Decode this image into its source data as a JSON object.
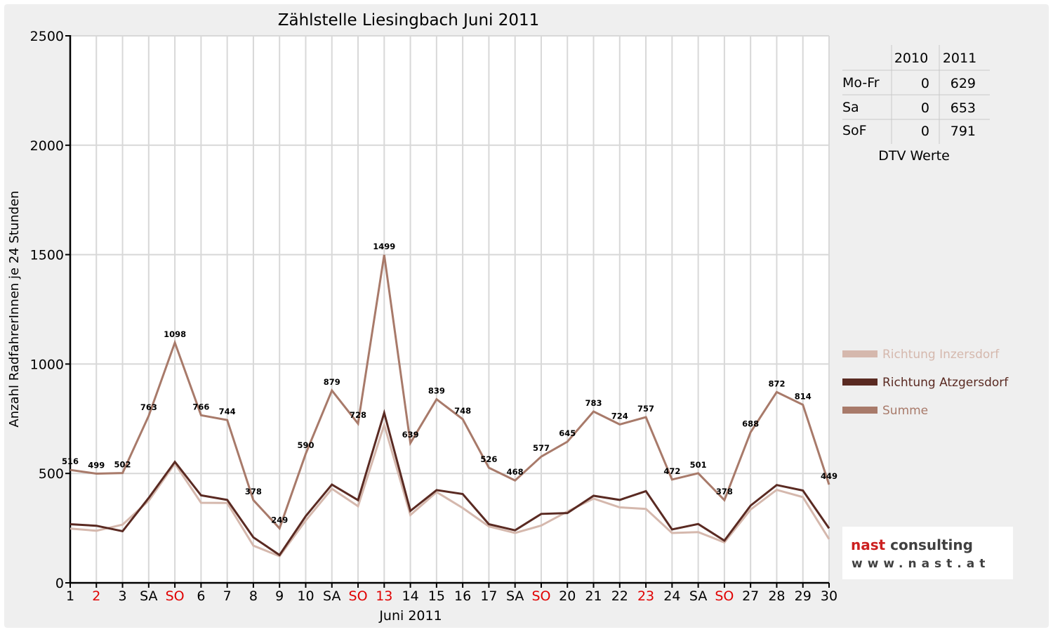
{
  "chart_data": {
    "type": "line",
    "title": "Zählstelle Liesingbach Juni 2011",
    "xlabel": "Juni 2011",
    "ylabel": "Anzahl RadfahrerInnen je 24 Stunden",
    "ylim": [
      0,
      2500
    ],
    "yticks": [
      0,
      500,
      1000,
      1500,
      2000,
      2500
    ],
    "grid": true,
    "legend_position": "right",
    "categories": [
      "1",
      "2",
      "3",
      "SA",
      "SO",
      "6",
      "7",
      "8",
      "9",
      "10",
      "SA",
      "SO",
      "13",
      "14",
      "15",
      "16",
      "17",
      "SA",
      "SO",
      "20",
      "21",
      "22",
      "23",
      "24",
      "SA",
      "SO",
      "27",
      "28",
      "29",
      "30"
    ],
    "red_categories": [
      1,
      4,
      11,
      12,
      18,
      22,
      25
    ],
    "series": [
      {
        "name": "Richtung Inzersdorf",
        "color": "#d5b8ad",
        "values": [
          248,
          238,
          266,
          375,
          545,
          366,
          365,
          170,
          122,
          285,
          430,
          350,
          722,
          310,
          415,
          342,
          258,
          228,
          262,
          326,
          385,
          345,
          338,
          228,
          232,
          185,
          335,
          425,
          392,
          200
        ]
      },
      {
        "name": "Richtung Atzgersdorf",
        "color": "#5a2a22",
        "values": [
          268,
          261,
          236,
          388,
          553,
          400,
          379,
          208,
          127,
          305,
          449,
          378,
          777,
          329,
          424,
          406,
          268,
          240,
          315,
          319,
          398,
          379,
          419,
          244,
          269,
          193,
          353,
          447,
          422,
          249
        ]
      },
      {
        "name": "Summe",
        "color": "#a87a6a",
        "values": [
          516,
          499,
          502,
          763,
          1098,
          766,
          744,
          378,
          249,
          590,
          879,
          728,
          1499,
          639,
          839,
          748,
          526,
          468,
          577,
          645,
          783,
          724,
          757,
          472,
          501,
          378,
          688,
          872,
          814,
          449
        ]
      }
    ],
    "data_labels": [
      "516",
      "499",
      "502",
      "763",
      "1098",
      "766",
      "744",
      "378",
      "249",
      "590",
      "879",
      "728",
      "1499",
      "639",
      "839",
      "748",
      "526",
      "468",
      "577",
      "645",
      "783",
      "724",
      "757",
      "472",
      "501",
      "378",
      "688",
      "872",
      "814",
      "449"
    ]
  },
  "dtv_table": {
    "headers": [
      "",
      "2010",
      "2011"
    ],
    "rows": [
      {
        "label": "Mo-Fr",
        "v2010": "0",
        "v2011": "629"
      },
      {
        "label": "Sa",
        "v2010": "0",
        "v2011": "653"
      },
      {
        "label": "SoF",
        "v2010": "0",
        "v2011": "791"
      }
    ],
    "caption": "DTV Werte"
  },
  "logo": {
    "line1_part1": "nast",
    "line1_part2": " consulting",
    "line2": "www.nast.at",
    "color_red": "#cc2020",
    "color_grey": "#404040"
  }
}
